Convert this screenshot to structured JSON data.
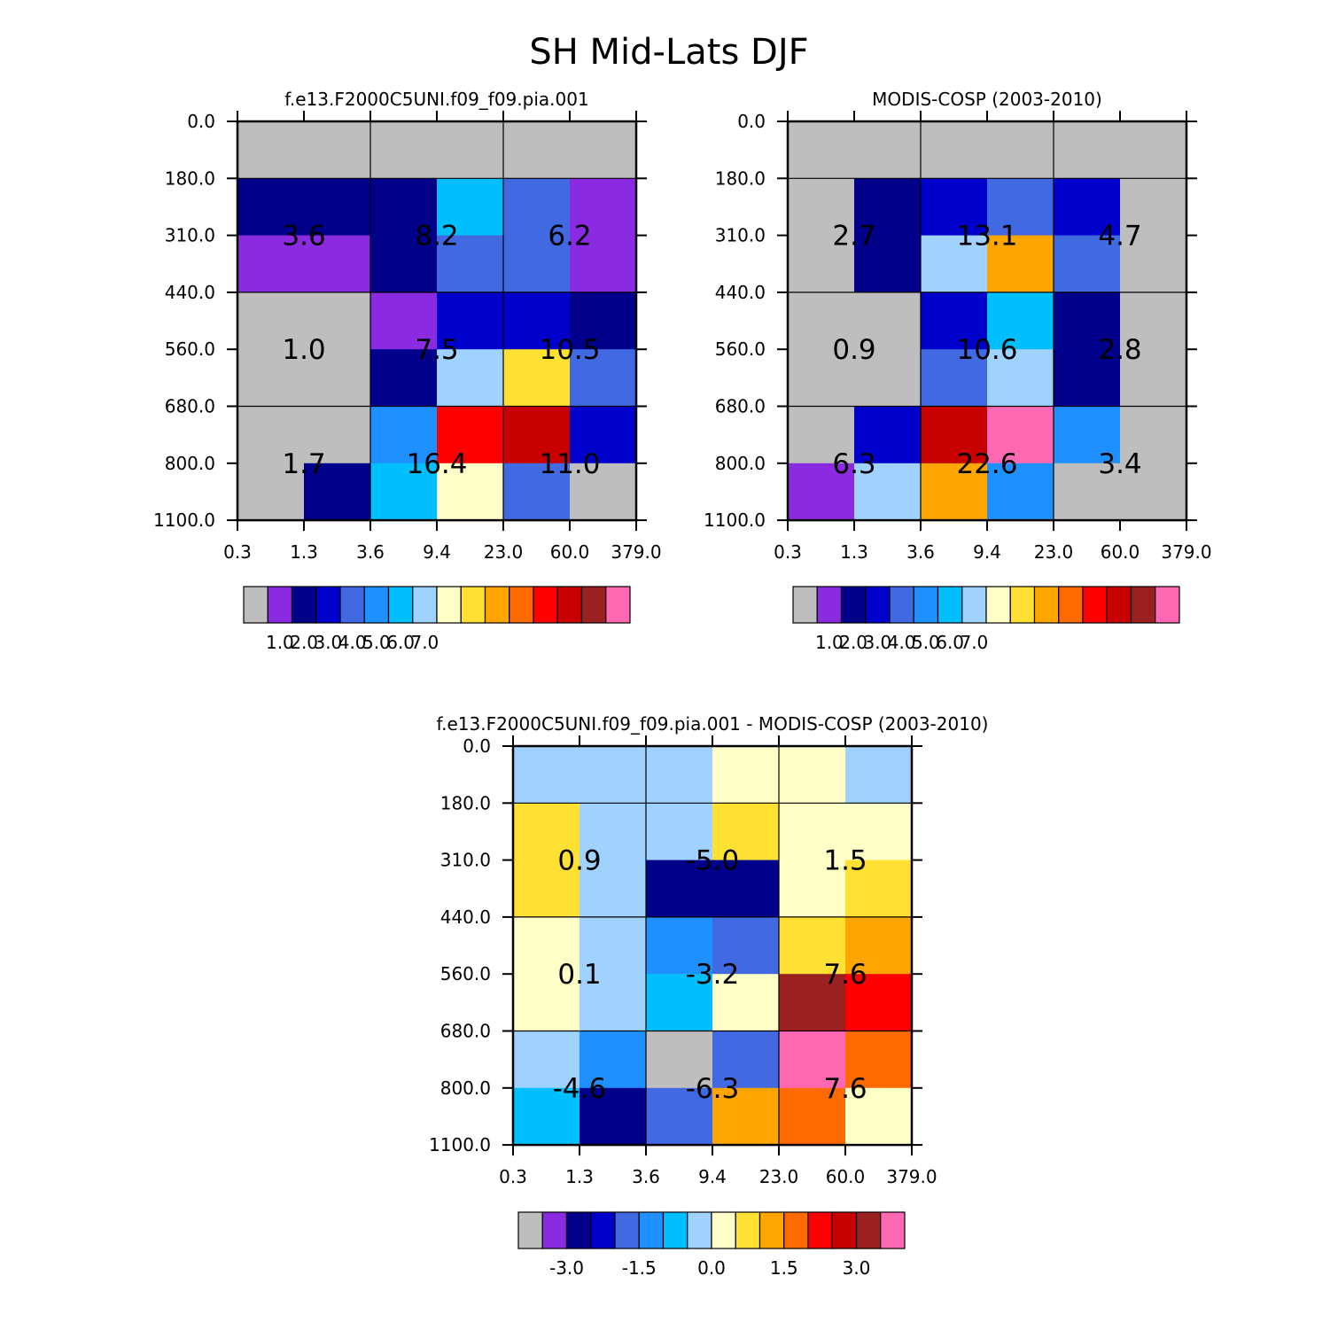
{
  "figure": {
    "title": "SH Mid-Lats DJF",
    "background": "#ffffff"
  },
  "palettes": {
    "absolute": [
      "#bebebe",
      "#8a2be2",
      "#00008b",
      "#0000cd",
      "#4169e1",
      "#1e90ff",
      "#00bfff",
      "#a0d2ff",
      "#ffffc8",
      "#ffe033",
      "#ffa500",
      "#ff6a00",
      "#ff0000",
      "#c80000",
      "#9b2020",
      "#ff69b4"
    ],
    "difference": [
      "#bebebe",
      "#8a2be2",
      "#00008b",
      "#0000cd",
      "#4169e1",
      "#1e90ff",
      "#00bfff",
      "#a0d2ff",
      "#ffffc8",
      "#ffe033",
      "#ffa500",
      "#ff6a00",
      "#ff0000",
      "#c80000",
      "#9b2020",
      "#ff69b4"
    ]
  },
  "chart_data": [
    {
      "type": "heatmap",
      "title": "f.e13.F2000C5UNI.f09_f09.pia.001",
      "x_ticks": [
        "0.3",
        "1.3",
        "3.6",
        "9.4",
        "23.0",
        "60.0",
        "379.0"
      ],
      "y_ticks": [
        "0.0",
        "180.0",
        "310.0",
        "440.0",
        "560.0",
        "680.0",
        "800.0",
        "1100.0"
      ],
      "cell_color_index": [
        [
          0,
          0,
          0,
          0,
          0,
          0
        ],
        [
          2,
          2,
          2,
          6,
          4,
          1
        ],
        [
          1,
          1,
          2,
          4,
          4,
          1
        ],
        [
          0,
          0,
          1,
          3,
          3,
          2
        ],
        [
          0,
          0,
          2,
          7,
          9,
          4
        ],
        [
          0,
          0,
          5,
          12,
          13,
          3
        ],
        [
          0,
          2,
          6,
          8,
          4,
          0
        ]
      ],
      "block_labels": [
        [
          "3.6",
          "8.2",
          "6.2"
        ],
        [
          "1.0",
          "7.5",
          "10.5"
        ],
        [
          "1.7",
          "16.4",
          "11.0"
        ]
      ],
      "colorbar": {
        "palette": "absolute",
        "labels": [
          "1.0",
          "2.0",
          "3.0",
          "4.0",
          "5.0",
          "6.0",
          "7.0"
        ],
        "label_positions": [
          1.5,
          2.5,
          3.5,
          4.5,
          5.5,
          6.5,
          7.5
        ]
      }
    },
    {
      "type": "heatmap",
      "title": "MODIS-COSP (2003-2010)",
      "x_ticks": [
        "0.3",
        "1.3",
        "3.6",
        "9.4",
        "23.0",
        "60.0",
        "379.0"
      ],
      "y_ticks": [
        "0.0",
        "180.0",
        "310.0",
        "440.0",
        "560.0",
        "680.0",
        "800.0",
        "1100.0"
      ],
      "cell_color_index": [
        [
          0,
          0,
          0,
          0,
          0,
          0
        ],
        [
          0,
          2,
          3,
          4,
          3,
          0
        ],
        [
          0,
          2,
          7,
          10,
          4,
          0
        ],
        [
          0,
          0,
          3,
          6,
          2,
          0
        ],
        [
          0,
          0,
          4,
          7,
          2,
          0
        ],
        [
          0,
          3,
          13,
          15,
          5,
          0
        ],
        [
          1,
          7,
          10,
          5,
          0,
          0
        ]
      ],
      "block_labels": [
        [
          "2.7",
          "13.1",
          "4.7"
        ],
        [
          "0.9",
          "10.6",
          "2.8"
        ],
        [
          "6.3",
          "22.6",
          "3.4"
        ]
      ],
      "colorbar": {
        "palette": "absolute",
        "labels": [
          "1.0",
          "2.0",
          "3.0",
          "4.0",
          "5.0",
          "6.0",
          "7.0"
        ],
        "label_positions": [
          1.5,
          2.5,
          3.5,
          4.5,
          5.5,
          6.5,
          7.5
        ]
      }
    },
    {
      "type": "heatmap",
      "title": "f.e13.F2000C5UNI.f09_f09.pia.001 - MODIS-COSP (2003-2010)",
      "x_ticks": [
        "0.3",
        "1.3",
        "3.6",
        "9.4",
        "23.0",
        "60.0",
        "379.0"
      ],
      "y_ticks": [
        "0.0",
        "180.0",
        "310.0",
        "440.0",
        "560.0",
        "680.0",
        "800.0",
        "1100.0"
      ],
      "cell_color_index": [
        [
          7,
          7,
          7,
          8,
          8,
          7
        ],
        [
          9,
          7,
          7,
          9,
          8,
          8
        ],
        [
          9,
          7,
          2,
          2,
          8,
          9
        ],
        [
          8,
          7,
          5,
          4,
          9,
          10
        ],
        [
          8,
          7,
          6,
          8,
          14,
          12
        ],
        [
          7,
          5,
          0,
          4,
          15,
          11
        ],
        [
          6,
          2,
          4,
          10,
          11,
          8
        ]
      ],
      "block_labels": [
        [
          "0.9",
          "-5.0",
          "1.5"
        ],
        [
          "0.1",
          "-3.2",
          "7.6"
        ],
        [
          "-4.6",
          "-6.3",
          "7.6"
        ]
      ],
      "colorbar": {
        "palette": "difference",
        "labels": [
          "-3.0",
          "-1.5",
          "0.0",
          "1.5",
          "3.0"
        ],
        "label_positions": [
          2,
          5,
          8,
          11,
          14
        ]
      }
    }
  ]
}
